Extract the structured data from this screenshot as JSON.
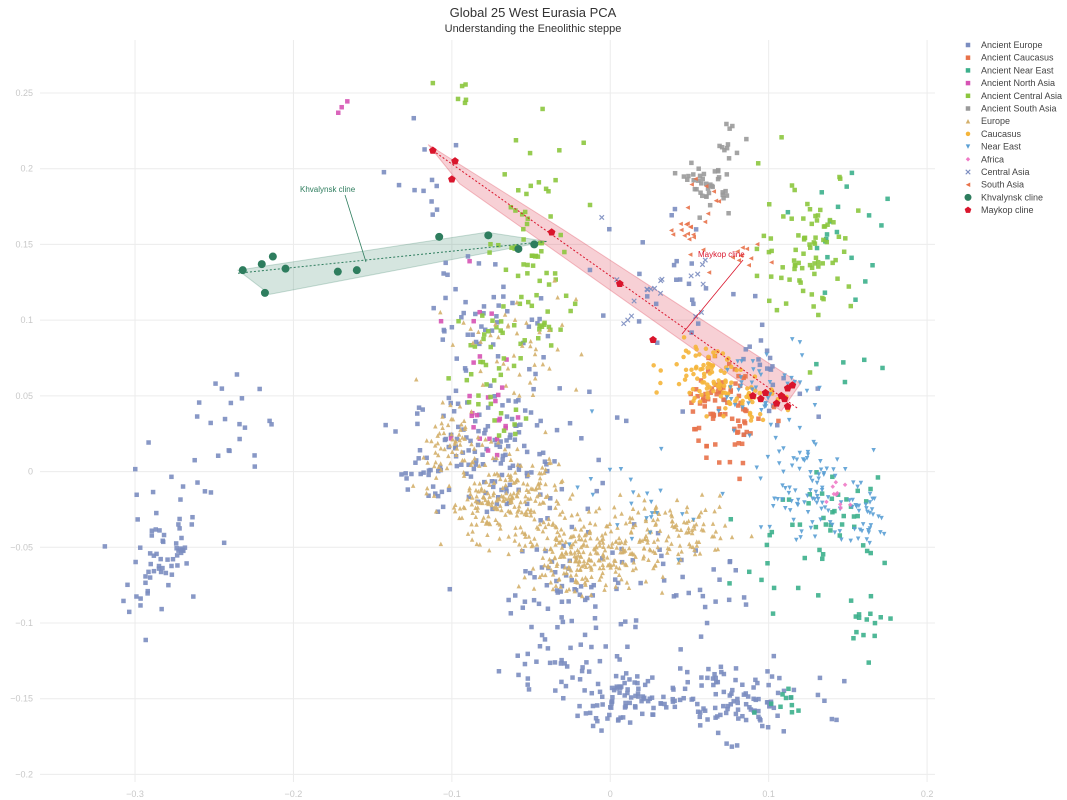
{
  "chart_data": {
    "type": "scatter",
    "title": "Global 25 West Eurasia PCA",
    "subtitle": "Understanding the Eneolithic steppe",
    "xlabel": "",
    "ylabel": "",
    "xlim": [
      -0.36,
      0.205
    ],
    "ylim": [
      -0.205,
      0.285
    ],
    "x_ticks": [
      -0.3,
      -0.2,
      -0.1,
      0,
      0.1,
      0.2
    ],
    "x_tick_labels": [
      "−0.3",
      "−0.2",
      "−0.1",
      "0",
      "0.1",
      "0.2"
    ],
    "y_ticks": [
      0.25,
      0.2,
      0.15,
      0.1,
      0.05,
      0,
      -0.05,
      -0.1,
      -0.15,
      -0.2
    ],
    "y_tick_labels": [
      "0.25",
      "0.2",
      "0.15",
      "0.1",
      "0.05",
      "0",
      "−0.05",
      "−0.1",
      "−0.15",
      "−0.2"
    ],
    "grid": true,
    "legend_position": "right",
    "series": [
      {
        "name": "Ancient Europe",
        "color": "#7b8dc0",
        "marker": "square",
        "clusters": [
          {
            "cx": -0.07,
            "cy": 0.01,
            "sx": 0.028,
            "sy": 0.022,
            "n": 130
          },
          {
            "cx": -0.02,
            "cy": -0.075,
            "sx": 0.025,
            "sy": 0.02,
            "n": 70
          },
          {
            "cx": -0.03,
            "cy": -0.13,
            "sx": 0.02,
            "sy": 0.012,
            "n": 40
          },
          {
            "cx": 0.01,
            "cy": -0.152,
            "sx": 0.015,
            "sy": 0.008,
            "n": 70
          },
          {
            "cx": 0.075,
            "cy": -0.15,
            "sx": 0.025,
            "sy": 0.012,
            "n": 110
          },
          {
            "cx": -0.285,
            "cy": -0.055,
            "sx": 0.016,
            "sy": 0.025,
            "n": 70
          },
          {
            "cx": -0.24,
            "cy": 0.03,
            "sx": 0.01,
            "sy": 0.018,
            "n": 22
          },
          {
            "cx": -0.11,
            "cy": 0.0,
            "sx": 0.015,
            "sy": 0.012,
            "n": 25
          },
          {
            "cx": -0.075,
            "cy": 0.1,
            "sx": 0.02,
            "sy": 0.02,
            "n": 50
          },
          {
            "cx": -0.115,
            "cy": 0.19,
            "sx": 0.012,
            "sy": 0.02,
            "n": 12
          },
          {
            "cx": 0.03,
            "cy": 0.11,
            "sx": 0.02,
            "sy": 0.03,
            "n": 25
          },
          {
            "cx": 0.1,
            "cy": 0.06,
            "sx": 0.015,
            "sy": 0.02,
            "n": 25
          },
          {
            "cx": 0.05,
            "cy": -0.08,
            "sx": 0.02,
            "sy": 0.015,
            "n": 25
          }
        ]
      },
      {
        "name": "Ancient Caucasus",
        "color": "#e8724a",
        "marker": "square",
        "clusters": [
          {
            "cx": 0.065,
            "cy": 0.045,
            "sx": 0.01,
            "sy": 0.015,
            "n": 55
          },
          {
            "cx": 0.085,
            "cy": 0.035,
            "sx": 0.01,
            "sy": 0.012,
            "n": 30
          }
        ]
      },
      {
        "name": "Ancient Near East",
        "color": "#3cb08c",
        "marker": "square",
        "clusters": [
          {
            "cx": 0.145,
            "cy": -0.03,
            "sx": 0.015,
            "sy": 0.015,
            "n": 35
          },
          {
            "cx": 0.16,
            "cy": -0.1,
            "sx": 0.008,
            "sy": 0.01,
            "n": 15
          },
          {
            "cx": 0.11,
            "cy": -0.145,
            "sx": 0.008,
            "sy": 0.008,
            "n": 10
          },
          {
            "cx": 0.15,
            "cy": 0.12,
            "sx": 0.02,
            "sy": 0.06,
            "n": 25
          },
          {
            "cx": 0.11,
            "cy": -0.06,
            "sx": 0.02,
            "sy": 0.03,
            "n": 15
          }
        ]
      },
      {
        "name": "Ancient North Asia",
        "color": "#d653b4",
        "marker": "square",
        "clusters": [
          {
            "cx": -0.075,
            "cy": 0.035,
            "sx": 0.01,
            "sy": 0.012,
            "n": 20
          },
          {
            "cx": -0.085,
            "cy": 0.11,
            "sx": 0.01,
            "sy": 0.02,
            "n": 8
          },
          {
            "cx": -0.17,
            "cy": 0.242,
            "sx": 0.003,
            "sy": 0.004,
            "n": 3
          }
        ]
      },
      {
        "name": "Ancient Central Asia",
        "color": "#8cc63e",
        "marker": "square",
        "clusters": [
          {
            "cx": 0.125,
            "cy": 0.15,
            "sx": 0.015,
            "sy": 0.025,
            "n": 80
          },
          {
            "cx": -0.05,
            "cy": 0.15,
            "sx": 0.015,
            "sy": 0.015,
            "n": 35
          },
          {
            "cx": -0.075,
            "cy": 0.06,
            "sx": 0.01,
            "sy": 0.025,
            "n": 35
          },
          {
            "cx": -0.045,
            "cy": 0.1,
            "sx": 0.015,
            "sy": 0.02,
            "n": 30
          },
          {
            "cx": -0.04,
            "cy": 0.2,
            "sx": 0.015,
            "sy": 0.015,
            "n": 12
          },
          {
            "cx": -0.1,
            "cy": 0.245,
            "sx": 0.012,
            "sy": 0.006,
            "n": 6
          }
        ]
      },
      {
        "name": "Ancient South Asia",
        "color": "#9a9a9a",
        "marker": "square",
        "clusters": [
          {
            "cx": 0.062,
            "cy": 0.19,
            "sx": 0.007,
            "sy": 0.008,
            "n": 40
          },
          {
            "cx": 0.075,
            "cy": 0.22,
            "sx": 0.004,
            "sy": 0.006,
            "n": 10
          }
        ]
      },
      {
        "name": "Europe",
        "color": "#d4b06c",
        "marker": "triangle-up",
        "clusters": [
          {
            "cx": -0.065,
            "cy": -0.02,
            "sx": 0.02,
            "sy": 0.014,
            "n": 230
          },
          {
            "cx": -0.015,
            "cy": -0.055,
            "sx": 0.02,
            "sy": 0.012,
            "n": 240
          },
          {
            "cx": 0.04,
            "cy": -0.04,
            "sx": 0.02,
            "sy": 0.01,
            "n": 120
          },
          {
            "cx": -0.1,
            "cy": 0.02,
            "sx": 0.012,
            "sy": 0.01,
            "n": 60
          },
          {
            "cx": -0.06,
            "cy": 0.08,
            "sx": 0.02,
            "sy": 0.02,
            "n": 50
          }
        ]
      },
      {
        "name": "Caucasus",
        "color": "#f5b53a",
        "marker": "circle",
        "clusters": [
          {
            "cx": 0.06,
            "cy": 0.065,
            "sx": 0.012,
            "sy": 0.01,
            "n": 80
          },
          {
            "cx": 0.085,
            "cy": 0.05,
            "sx": 0.01,
            "sy": 0.008,
            "n": 40
          }
        ]
      },
      {
        "name": "Near East",
        "color": "#5a9fd4",
        "marker": "triangle-down",
        "clusters": [
          {
            "cx": 0.12,
            "cy": -0.01,
            "sx": 0.014,
            "sy": 0.02,
            "n": 80
          },
          {
            "cx": 0.16,
            "cy": -0.03,
            "sx": 0.01,
            "sy": 0.01,
            "n": 40
          },
          {
            "cx": 0.1,
            "cy": 0.05,
            "sx": 0.015,
            "sy": 0.02,
            "n": 50
          },
          {
            "cx": 0.02,
            "cy": -0.02,
            "sx": 0.02,
            "sy": 0.02,
            "n": 25
          }
        ]
      },
      {
        "name": "Africa",
        "color": "#f07ac6",
        "marker": "diamond",
        "clusters": [
          {
            "cx": 0.145,
            "cy": -0.02,
            "sx": 0.004,
            "sy": 0.005,
            "n": 10
          }
        ]
      },
      {
        "name": "Central Asia",
        "color": "#7b8dc0",
        "marker": "x",
        "clusters": [
          {
            "cx": 0.03,
            "cy": 0.12,
            "sx": 0.015,
            "sy": 0.015,
            "n": 20
          }
        ]
      },
      {
        "name": "South Asia",
        "color": "#e8724a",
        "marker": "triangle-left",
        "clusters": [
          {
            "cx": 0.052,
            "cy": 0.165,
            "sx": 0.007,
            "sy": 0.012,
            "n": 25
          },
          {
            "cx": 0.085,
            "cy": 0.145,
            "sx": 0.008,
            "sy": 0.006,
            "n": 10
          }
        ]
      },
      {
        "name": "Khvalynsk cline",
        "color": "#2e7d5e",
        "marker": "circle",
        "points": [
          [
            -0.232,
            0.133
          ],
          [
            -0.22,
            0.137
          ],
          [
            -0.213,
            0.142
          ],
          [
            -0.218,
            0.118
          ],
          [
            -0.205,
            0.134
          ],
          [
            -0.172,
            0.132
          ],
          [
            -0.16,
            0.133
          ],
          [
            -0.108,
            0.155
          ],
          [
            -0.077,
            0.156
          ],
          [
            -0.048,
            0.15
          ],
          [
            -0.058,
            0.147
          ]
        ]
      },
      {
        "name": "Maykop cline",
        "color": "#d9152c",
        "marker": "pentagon",
        "points": [
          [
            -0.112,
            0.212
          ],
          [
            -0.098,
            0.205
          ],
          [
            -0.1,
            0.193
          ],
          [
            -0.037,
            0.158
          ],
          [
            0.006,
            0.124
          ],
          [
            0.027,
            0.087
          ],
          [
            0.09,
            0.05
          ],
          [
            0.095,
            0.048
          ],
          [
            0.098,
            0.052
          ],
          [
            0.105,
            0.045
          ],
          [
            0.108,
            0.05
          ],
          [
            0.112,
            0.055
          ],
          [
            0.115,
            0.057
          ],
          [
            0.112,
            0.043
          ],
          [
            0.11,
            0.048
          ]
        ]
      }
    ],
    "annotations": [
      {
        "text": "Khvalynsk cline",
        "x": -0.155,
        "y": 0.14,
        "color": "#2e7d5e"
      },
      {
        "text": "Maykop cline",
        "x": 0.05,
        "y": 0.092,
        "color": "#d9152c"
      }
    ],
    "clines": [
      {
        "name": "Khvalynsk cline",
        "color": "#2e7d5e",
        "polygon": [
          [
            -0.235,
            0.133
          ],
          [
            -0.078,
            0.158
          ],
          [
            -0.04,
            0.152
          ],
          [
            -0.215,
            0.117
          ]
        ],
        "trend": [
          [
            -0.235,
            0.131
          ],
          [
            -0.04,
            0.152
          ]
        ]
      },
      {
        "name": "Maykop cline",
        "color": "#d9152c",
        "polygon": [
          [
            -0.115,
            0.216
          ],
          [
            -0.03,
            0.16
          ],
          [
            0.12,
            0.058
          ],
          [
            0.108,
            0.04
          ],
          [
            -0.095,
            0.19
          ]
        ],
        "trend": [
          [
            -0.112,
            0.212
          ],
          [
            0.118,
            0.042
          ]
        ]
      }
    ]
  }
}
